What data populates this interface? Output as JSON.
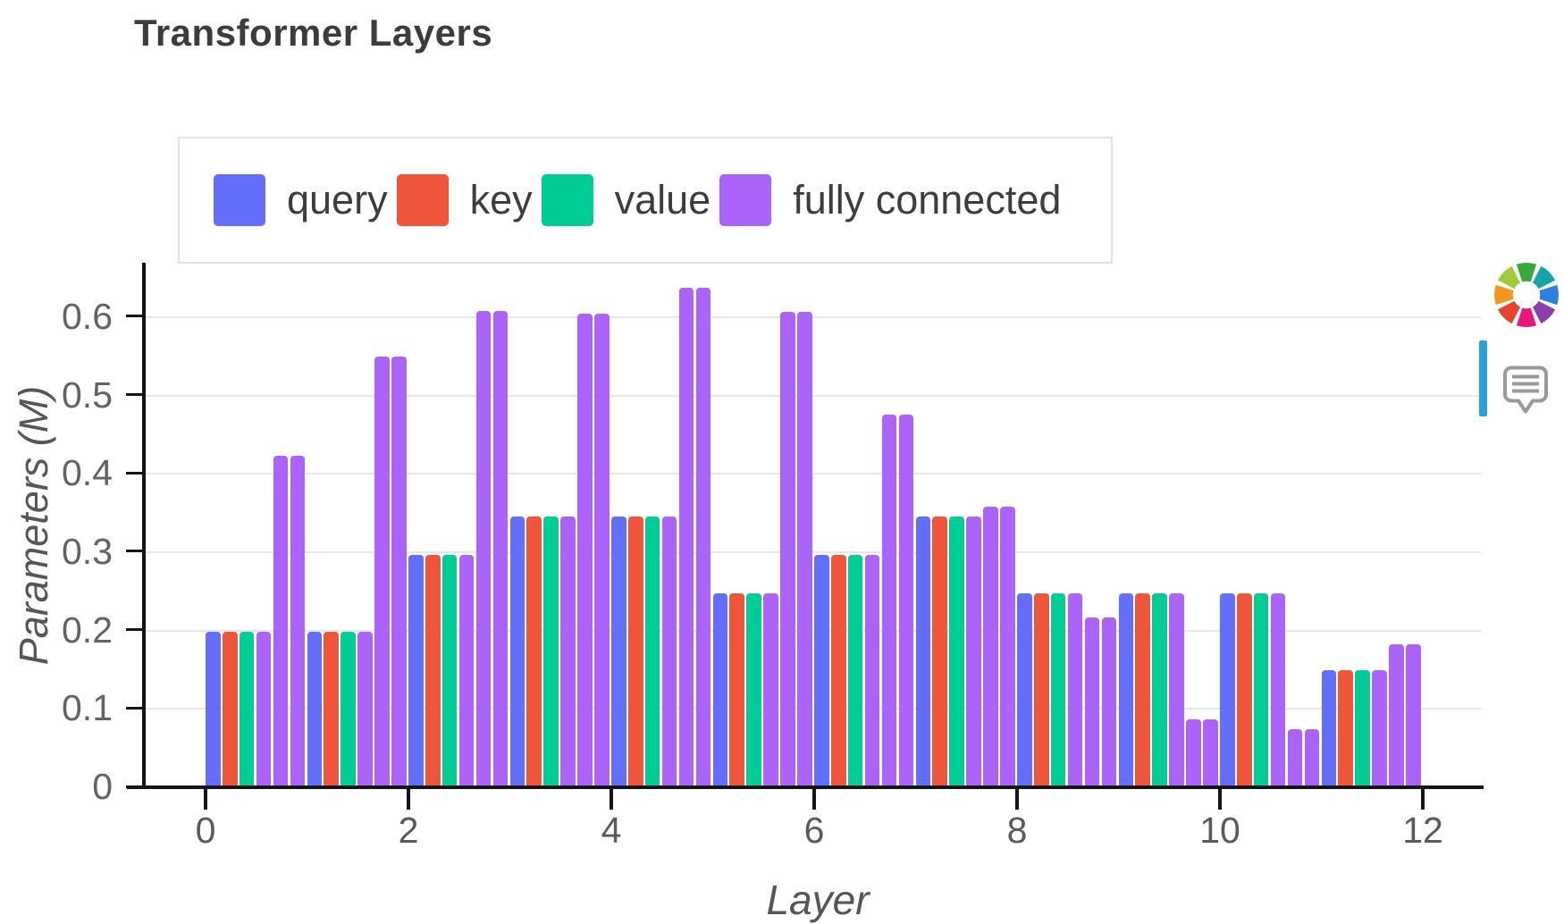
{
  "header": {
    "title": "Transformer Layers"
  },
  "chart_data": {
    "type": "bar",
    "title": "Transformer Layers",
    "xlabel": "Layer",
    "ylabel": "Parameters (M)",
    "x_ticks": [
      0,
      2,
      4,
      6,
      8,
      10,
      12
    ],
    "y_ticks": [
      0,
      0.1,
      0.2,
      0.3,
      0.4,
      0.5,
      0.6
    ],
    "y_tick_labels": [
      "0",
      "0.1",
      "0.2",
      "0.3",
      "0.4",
      "0.5",
      "0.6"
    ],
    "xlim": [
      -0.61,
      12.57
    ],
    "ylim": [
      0,
      0.666
    ],
    "grid": true,
    "legend_position": "top-left-horizontal",
    "bar_order_per_layer": [
      "query",
      "key",
      "value",
      "fully connected",
      "fully connected",
      "fully connected"
    ],
    "series": [
      {
        "name": "query",
        "color": "#636EFA"
      },
      {
        "name": "key",
        "color": "#EF553B"
      },
      {
        "name": "value",
        "color": "#00CC96"
      },
      {
        "name": "fully connected",
        "color": "#AB63FA"
      }
    ],
    "layers": [
      {
        "layer": 0,
        "query": 0.197,
        "key": 0.197,
        "value": 0.197,
        "fully_connected": [
          0.197,
          0.422,
          0.422
        ]
      },
      {
        "layer": 1,
        "query": 0.197,
        "key": 0.197,
        "value": 0.197,
        "fully_connected": [
          0.197,
          0.548,
          0.548
        ]
      },
      {
        "layer": 2,
        "query": 0.295,
        "key": 0.295,
        "value": 0.295,
        "fully_connected": [
          0.295,
          0.607,
          0.607
        ]
      },
      {
        "layer": 3,
        "query": 0.344,
        "key": 0.344,
        "value": 0.344,
        "fully_connected": [
          0.344,
          0.603,
          0.603
        ]
      },
      {
        "layer": 4,
        "query": 0.344,
        "key": 0.344,
        "value": 0.344,
        "fully_connected": [
          0.344,
          0.636,
          0.636
        ]
      },
      {
        "layer": 5,
        "query": 0.246,
        "key": 0.246,
        "value": 0.246,
        "fully_connected": [
          0.246,
          0.605,
          0.605
        ]
      },
      {
        "layer": 6,
        "query": 0.295,
        "key": 0.295,
        "value": 0.295,
        "fully_connected": [
          0.295,
          0.474,
          0.474
        ]
      },
      {
        "layer": 7,
        "query": 0.344,
        "key": 0.344,
        "value": 0.344,
        "fully_connected": [
          0.344,
          0.357,
          0.357
        ]
      },
      {
        "layer": 8,
        "query": 0.246,
        "key": 0.246,
        "value": 0.246,
        "fully_connected": [
          0.246,
          0.216,
          0.216
        ]
      },
      {
        "layer": 9,
        "query": 0.246,
        "key": 0.246,
        "value": 0.246,
        "fully_connected": [
          0.246,
          0.086,
          0.086
        ]
      },
      {
        "layer": 10,
        "query": 0.246,
        "key": 0.246,
        "value": 0.246,
        "fully_connected": [
          0.246,
          0.073,
          0.073
        ]
      },
      {
        "layer": 11,
        "query": 0.148,
        "key": 0.148,
        "value": 0.148,
        "fully_connected": [
          0.148,
          0.181,
          0.181
        ]
      }
    ]
  },
  "overlay": {
    "scroll_indicator_color": "#2AA2DC",
    "bubble_stroke_color": "#9A9A9A",
    "logo_segment_colors": [
      "#3AA83E",
      "#14A5A8",
      "#2E7FE0",
      "#8B3FAE",
      "#E81879",
      "#E8432C",
      "#F5941E",
      "#A4C93C"
    ]
  }
}
